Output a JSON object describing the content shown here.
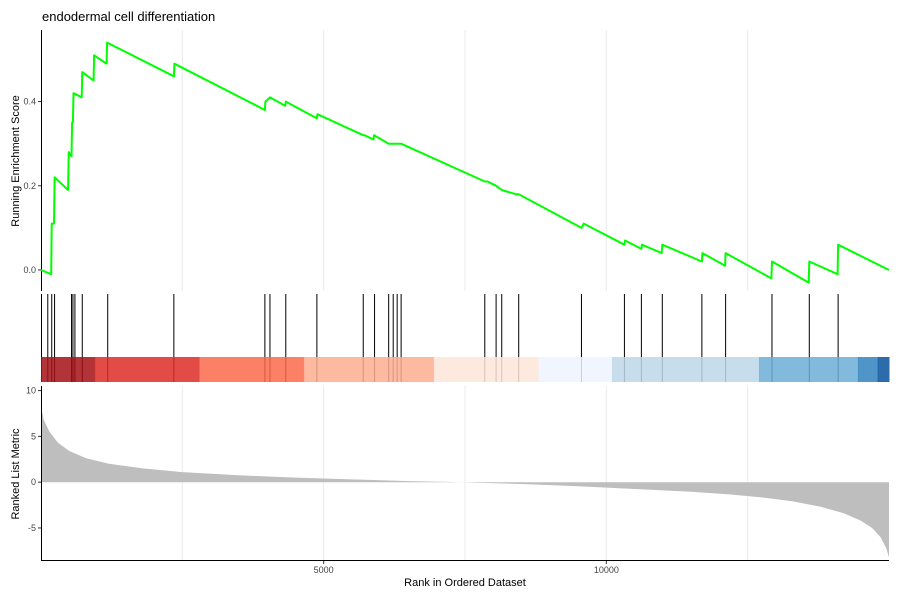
{
  "chart_data": {
    "type": "line",
    "title": "endodermal cell differentiation",
    "xlabel": "Rank in Ordered Dataset",
    "xlim": [
      0,
      15000
    ],
    "x_ticks": [
      5000,
      10000
    ],
    "grid": true,
    "es_panel": {
      "ylabel": "Running Enrichment Score",
      "ylim": [
        -0.05,
        0.57
      ],
      "y_ticks": [
        0.0,
        0.2,
        0.4
      ],
      "color": "#00ff00",
      "points": [
        [
          0,
          0.0
        ],
        [
          180,
          -0.01
        ],
        [
          190,
          0.11
        ],
        [
          230,
          0.11
        ],
        [
          240,
          0.22
        ],
        [
          480,
          0.19
        ],
        [
          490,
          0.28
        ],
        [
          540,
          0.27
        ],
        [
          550,
          0.35
        ],
        [
          565,
          0.35
        ],
        [
          575,
          0.42
        ],
        [
          720,
          0.41
        ],
        [
          730,
          0.47
        ],
        [
          930,
          0.45
        ],
        [
          940,
          0.51
        ],
        [
          1160,
          0.49
        ],
        [
          1170,
          0.54
        ],
        [
          2350,
          0.46
        ],
        [
          2360,
          0.49
        ],
        [
          3960,
          0.38
        ],
        [
          3970,
          0.4
        ],
        [
          4050,
          0.41
        ],
        [
          4320,
          0.39
        ],
        [
          4330,
          0.4
        ],
        [
          4880,
          0.36
        ],
        [
          4890,
          0.37
        ],
        [
          5700,
          0.32
        ],
        [
          5720,
          0.32
        ],
        [
          5880,
          0.31
        ],
        [
          5890,
          0.32
        ],
        [
          6150,
          0.3
        ],
        [
          6180,
          0.3
        ],
        [
          6250,
          0.3
        ],
        [
          6370,
          0.3
        ],
        [
          7850,
          0.21
        ],
        [
          7900,
          0.21
        ],
        [
          8050,
          0.2
        ],
        [
          8150,
          0.19
        ],
        [
          8400,
          0.18
        ],
        [
          8450,
          0.18
        ],
        [
          9560,
          0.1
        ],
        [
          9600,
          0.11
        ],
        [
          10320,
          0.06
        ],
        [
          10330,
          0.07
        ],
        [
          10620,
          0.05
        ],
        [
          10630,
          0.06
        ],
        [
          10980,
          0.04
        ],
        [
          10990,
          0.06
        ],
        [
          11690,
          0.02
        ],
        [
          11700,
          0.04
        ],
        [
          12100,
          0.01
        ],
        [
          12110,
          0.04
        ],
        [
          12920,
          -0.02
        ],
        [
          12930,
          0.02
        ],
        [
          13580,
          -0.03
        ],
        [
          13590,
          0.02
        ],
        [
          14090,
          -0.01
        ],
        [
          14100,
          0.06
        ],
        [
          15000,
          0.0
        ]
      ]
    },
    "hits": [
      120,
      190,
      240,
      540,
      565,
      600,
      730,
      1180,
      2350,
      3960,
      4050,
      4330,
      4880,
      5700,
      5900,
      6150,
      6230,
      6300,
      6370,
      7850,
      8050,
      8150,
      8450,
      9560,
      10320,
      10620,
      10990,
      11690,
      12110,
      12930,
      13590,
      14100
    ],
    "rank_colorbar": [
      {
        "from": 0,
        "to": 950,
        "color": "#a50f15"
      },
      {
        "from": 950,
        "to": 2800,
        "color": "#de2d26"
      },
      {
        "from": 2800,
        "to": 4650,
        "color": "#fb6a4a"
      },
      {
        "from": 4650,
        "to": 6950,
        "color": "#fcae91"
      },
      {
        "from": 6950,
        "to": 8800,
        "color": "#fee5d9"
      },
      {
        "from": 8800,
        "to": 10100,
        "color": "#eff3ff"
      },
      {
        "from": 10100,
        "to": 12700,
        "color": "#bdd7e7"
      },
      {
        "from": 12700,
        "to": 14450,
        "color": "#6baed6"
      },
      {
        "from": 14450,
        "to": 14800,
        "color": "#3182bd"
      },
      {
        "from": 14800,
        "to": 15000,
        "color": "#08519c"
      }
    ],
    "metric_panel": {
      "ylabel": "Ranked List Metric",
      "ylim": [
        -8.5,
        10.5
      ],
      "y_ticks": [
        10,
        5,
        0,
        -5
      ],
      "fill_color": "#bebebe",
      "points": [
        [
          0,
          8.2
        ],
        [
          50,
          6.8
        ],
        [
          150,
          5.5
        ],
        [
          300,
          4.3
        ],
        [
          500,
          3.4
        ],
        [
          800,
          2.6
        ],
        [
          1200,
          2.0
        ],
        [
          1800,
          1.5
        ],
        [
          2500,
          1.1
        ],
        [
          3500,
          0.75
        ],
        [
          4500,
          0.5
        ],
        [
          5500,
          0.3
        ],
        [
          6500,
          0.12
        ],
        [
          7300,
          0.02
        ],
        [
          7400,
          -0.02
        ],
        [
          8500,
          -0.2
        ],
        [
          9500,
          -0.45
        ],
        [
          10500,
          -0.75
        ],
        [
          11500,
          -1.05
        ],
        [
          12200,
          -1.35
        ],
        [
          12800,
          -1.7
        ],
        [
          13300,
          -2.1
        ],
        [
          13800,
          -2.7
        ],
        [
          14200,
          -3.4
        ],
        [
          14500,
          -4.2
        ],
        [
          14700,
          -5.0
        ],
        [
          14850,
          -6.0
        ],
        [
          14950,
          -7.2
        ],
        [
          15000,
          -8.2
        ]
      ]
    }
  }
}
